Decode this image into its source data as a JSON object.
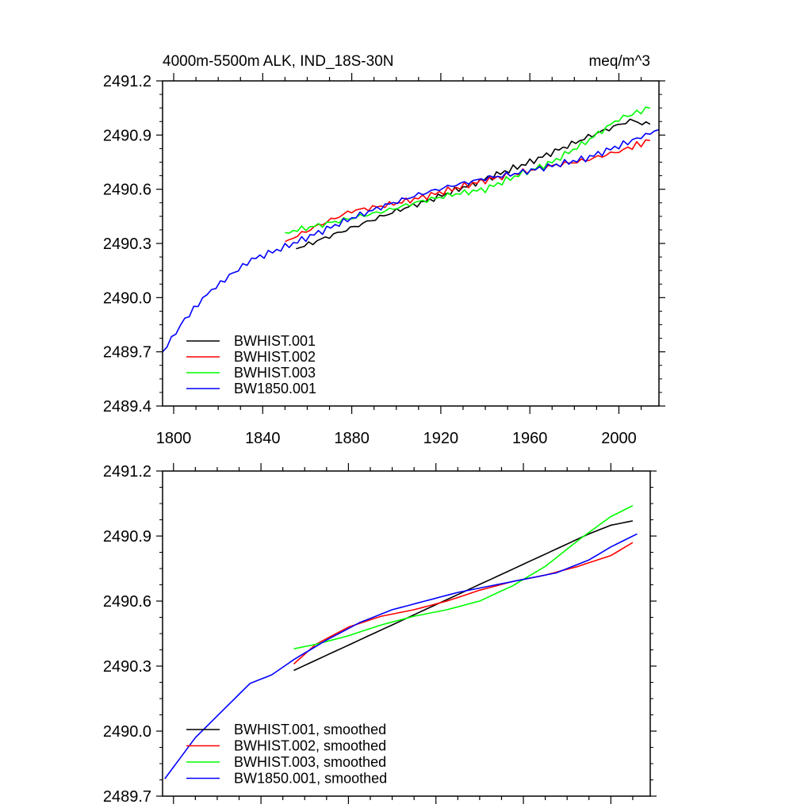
{
  "chart_data": [
    {
      "type": "line",
      "title": "4000m-5500m ALK, IND_18S-30N",
      "units": "meq/m^3",
      "xlim": [
        1795,
        2018
      ],
      "ylim": [
        2489.4,
        2491.2
      ],
      "xticks": [
        1800,
        1840,
        1880,
        1920,
        1960,
        2000
      ],
      "yticks": [
        2489.4,
        2489.7,
        2490.0,
        2490.3,
        2490.6,
        2490.9,
        2491.2
      ],
      "ytick_labels": [
        "2489.4",
        "2489.7",
        "2490.0",
        "2490.3",
        "2490.6",
        "2490.9",
        "2491.2"
      ],
      "legend_position": "bottom-left",
      "series": [
        {
          "name": "BWHIST.001",
          "color": "#000000",
          "x": [
            1855,
            1870,
            1885,
            1900,
            1915,
            1930,
            1945,
            1960,
            1975,
            1990,
            2005,
            2014
          ],
          "y": [
            2490.27,
            2490.34,
            2490.41,
            2490.48,
            2490.54,
            2490.61,
            2490.68,
            2490.75,
            2490.83,
            2490.91,
            2490.98,
            2490.96
          ]
        },
        {
          "name": "BWHIST.002",
          "color": "#ff0000",
          "x": [
            1850,
            1865,
            1880,
            1895,
            1910,
            1925,
            1940,
            1955,
            1970,
            1985,
            2000,
            2014
          ],
          "y": [
            2490.31,
            2490.4,
            2490.48,
            2490.51,
            2490.55,
            2490.6,
            2490.65,
            2490.69,
            2490.73,
            2490.76,
            2490.81,
            2490.87
          ]
        },
        {
          "name": "BWHIST.003",
          "color": "#00ff00",
          "x": [
            1850,
            1865,
            1880,
            1895,
            1910,
            1925,
            1940,
            1955,
            1970,
            1985,
            2000,
            2014
          ],
          "y": [
            2490.36,
            2490.4,
            2490.44,
            2490.48,
            2490.53,
            2490.57,
            2490.6,
            2490.68,
            2490.75,
            2490.86,
            2490.99,
            2491.05
          ]
        },
        {
          "name": "BW1850.001",
          "color": "#0000ff",
          "x": [
            1795,
            1805,
            1815,
            1825,
            1835,
            1850,
            1865,
            1880,
            1895,
            1910,
            1925,
            1940,
            1955,
            1970,
            1985,
            2000,
            2018
          ],
          "y": [
            2489.7,
            2489.88,
            2490.02,
            2490.12,
            2490.21,
            2490.28,
            2490.36,
            2490.44,
            2490.51,
            2490.57,
            2490.62,
            2490.66,
            2490.69,
            2490.73,
            2490.77,
            2490.84,
            2490.93
          ]
        }
      ]
    },
    {
      "type": "line",
      "xlim": [
        1795,
        2018
      ],
      "ylim": [
        2489.7,
        2491.2
      ],
      "xticks": [
        1800,
        1840,
        1880,
        1920,
        1960,
        2000
      ],
      "yticks": [
        2489.7,
        2490.0,
        2490.3,
        2490.6,
        2490.9,
        2491.2
      ],
      "ytick_labels": [
        "2489.7",
        "2490.0",
        "2490.3",
        "2490.6",
        "2490.9",
        "2491.2"
      ],
      "legend_position": "bottom-left",
      "series": [
        {
          "name": "BWHIST.001, smoothed",
          "color": "#000000",
          "x": [
            1855,
            1870,
            1885,
            1900,
            1915,
            1930,
            1945,
            1960,
            1975,
            1990,
            2000,
            2010
          ],
          "y": [
            2490.28,
            2490.35,
            2490.42,
            2490.49,
            2490.56,
            2490.63,
            2490.7,
            2490.77,
            2490.84,
            2490.91,
            2490.95,
            2490.97
          ]
        },
        {
          "name": "BWHIST.002, smoothed",
          "color": "#ff0000",
          "x": [
            1855,
            1865,
            1880,
            1895,
            1910,
            1925,
            1940,
            1955,
            1970,
            1985,
            2000,
            2010
          ],
          "y": [
            2490.31,
            2490.4,
            2490.48,
            2490.53,
            2490.56,
            2490.6,
            2490.65,
            2490.69,
            2490.72,
            2490.76,
            2490.81,
            2490.87
          ]
        },
        {
          "name": "BWHIST.003, smoothed",
          "color": "#00ff00",
          "x": [
            1855,
            1865,
            1880,
            1895,
            1910,
            1925,
            1940,
            1955,
            1970,
            1985,
            2000,
            2010
          ],
          "y": [
            2490.38,
            2490.4,
            2490.44,
            2490.49,
            2490.53,
            2490.56,
            2490.6,
            2490.67,
            2490.76,
            2490.88,
            2490.99,
            2491.04
          ]
        },
        {
          "name": "BW1850.001, smoothed",
          "color": "#0000ff",
          "x": [
            1796,
            1810,
            1825,
            1835,
            1845,
            1855,
            1870,
            1885,
            1900,
            1915,
            1930,
            1945,
            1960,
            1975,
            1990,
            2000,
            2012
          ],
          "y": [
            2489.78,
            2489.97,
            2490.12,
            2490.22,
            2490.26,
            2490.33,
            2490.42,
            2490.5,
            2490.56,
            2490.6,
            2490.64,
            2490.67,
            2490.7,
            2490.73,
            2490.79,
            2490.85,
            2490.91
          ]
        }
      ]
    }
  ]
}
